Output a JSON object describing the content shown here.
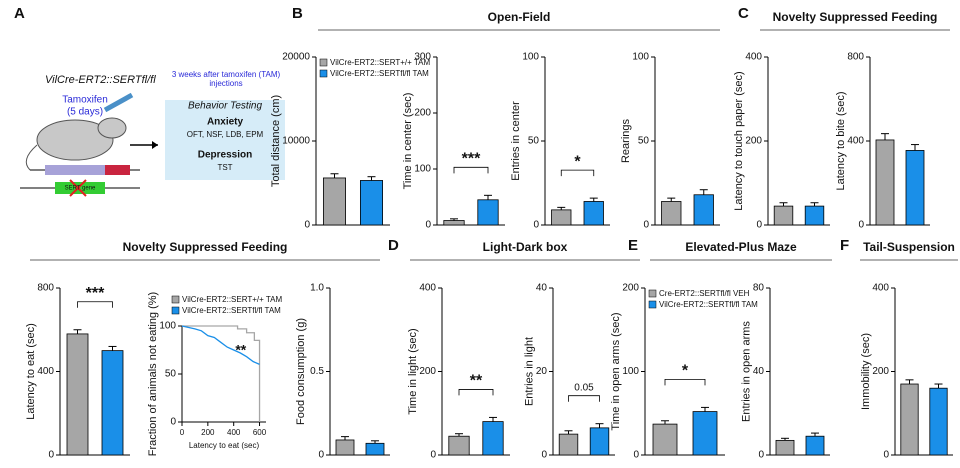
{
  "panel_labels": [
    "A",
    "B",
    "C",
    "D",
    "E",
    "F"
  ],
  "section_titles": [
    "Open-Field",
    "Novelty Suppressed Feeding",
    "Novelty Suppressed Feeding",
    "Light-Dark box",
    "Elevated-Plus Maze",
    "Tail-Suspension"
  ],
  "diagram": {
    "genotype": "VilCre-ERT2::SERTfl/fl",
    "treatment": "Tamoxifen",
    "treatment_duration": "(5 days)",
    "timing": "3 weeks after tamoxifen (TAM) injections",
    "box_title": "Behavior Testing",
    "anxiety": "Anxiety",
    "anxiety_tests": "OFT, NSF, LDB, EPM",
    "depression": "Depression",
    "depression_tests": "TST",
    "gene": "SERT gene"
  },
  "chart_data": [
    {
      "type": "bar",
      "ylabel": "Total distance (cm)",
      "ylim": [
        0,
        20000
      ],
      "yticks": [
        0,
        10000,
        20000
      ],
      "values": [
        5600,
        5300
      ],
      "errors": [
        500,
        450
      ],
      "colors": [
        "#a6a6a6",
        "#1a8fe8"
      ],
      "legend": [
        "VilCre-ERT2::SERT+/+ TAM",
        "VilCre-ERT2::SERTfl/fl TAM"
      ]
    },
    {
      "type": "bar",
      "ylabel": "Time in center (sec)",
      "ylim": [
        0,
        300
      ],
      "yticks": [
        0,
        100,
        200,
        300
      ],
      "values": [
        8,
        45
      ],
      "errors": [
        3,
        8
      ],
      "colors": [
        "#a6a6a6",
        "#1a8fe8"
      ],
      "annotation": "***"
    },
    {
      "type": "bar",
      "ylabel": "Entries in center",
      "ylim": [
        0,
        100
      ],
      "yticks": [
        0,
        50,
        100
      ],
      "values": [
        9,
        14
      ],
      "errors": [
        1.5,
        2
      ],
      "colors": [
        "#a6a6a6",
        "#1a8fe8"
      ],
      "annotation": "*"
    },
    {
      "type": "bar",
      "ylabel": "Rearings",
      "ylim": [
        0,
        100
      ],
      "yticks": [
        0,
        50,
        100
      ],
      "values": [
        14,
        18
      ],
      "errors": [
        2,
        3
      ],
      "colors": [
        "#a6a6a6",
        "#1a8fe8"
      ]
    },
    {
      "type": "bar",
      "ylabel": "Latency to touch paper (sec)",
      "ylim": [
        0,
        400
      ],
      "yticks": [
        0,
        200,
        400
      ],
      "values": [
        45,
        45
      ],
      "errors": [
        8,
        8
      ],
      "colors": [
        "#a6a6a6",
        "#1a8fe8"
      ]
    },
    {
      "type": "bar",
      "ylabel": "Latency to bite (sec)",
      "ylim": [
        0,
        800
      ],
      "yticks": [
        0,
        400,
        800
      ],
      "values": [
        405,
        355
      ],
      "errors": [
        30,
        28
      ],
      "colors": [
        "#a6a6a6",
        "#1a8fe8"
      ]
    },
    {
      "type": "bar",
      "ylabel": "Latency to eat (sec)",
      "ylim": [
        0,
        800
      ],
      "yticks": [
        0,
        400,
        800
      ],
      "values": [
        580,
        500
      ],
      "errors": [
        20,
        20
      ],
      "colors": [
        "#a6a6a6",
        "#1a8fe8"
      ],
      "annotation": "***"
    },
    {
      "type": "line",
      "ylabel": "Fraction of animals not eating (%)",
      "xlabel": "Latency to eat (sec)",
      "xlim": [
        0,
        650
      ],
      "xticks": [
        0,
        200,
        400,
        600
      ],
      "ylim": [
        0,
        100
      ],
      "yticks": [
        0,
        50,
        100
      ],
      "annotation": "**",
      "series": [
        {
          "name": "VilCre-ERT2::SERT+/+ TAM",
          "color": "#a6a6a6",
          "x": [
            0,
            430,
            430,
            500,
            500,
            560,
            560,
            600,
            600
          ],
          "values": [
            100,
            100,
            97,
            97,
            93,
            93,
            85,
            85,
            0
          ]
        },
        {
          "name": "VilCre-ERT2::SERTfl/fl TAM",
          "color": "#1a8fe8",
          "x": [
            0,
            100,
            150,
            200,
            250,
            300,
            350,
            400,
            450,
            500,
            550,
            600
          ],
          "values": [
            100,
            97,
            95,
            90,
            88,
            83,
            78,
            75,
            72,
            68,
            63,
            60
          ]
        }
      ]
    },
    {
      "type": "bar",
      "ylabel": "Food consumption (g)",
      "ylim": [
        0,
        1
      ],
      "yticks": [
        0,
        0.5,
        {
          "value": 1,
          "label": "1.0"
        }
      ],
      "values": [
        0.09,
        0.07
      ],
      "errors": [
        0.02,
        0.015
      ],
      "colors": [
        "#a6a6a6",
        "#1a8fe8"
      ]
    },
    {
      "type": "bar",
      "ylabel": "Time in light (sec)",
      "ylim": [
        0,
        400
      ],
      "yticks": [
        0,
        200,
        400
      ],
      "values": [
        45,
        80
      ],
      "errors": [
        6,
        10
      ],
      "colors": [
        "#a6a6a6",
        "#1a8fe8"
      ],
      "annotation": "**"
    },
    {
      "type": "bar",
      "ylabel": "Entries in light",
      "ylim": [
        0,
        40
      ],
      "yticks": [
        0,
        20,
        40
      ],
      "values": [
        5,
        6.5
      ],
      "errors": [
        0.8,
        1
      ],
      "colors": [
        "#a6a6a6",
        "#1a8fe8"
      ],
      "annotation": "0.05"
    },
    {
      "type": "bar",
      "ylabel": "Time in open arms (sec)",
      "ylim": [
        0,
        200
      ],
      "yticks": [
        0,
        100,
        200
      ],
      "values": [
        37,
        52
      ],
      "errors": [
        4,
        5
      ],
      "colors": [
        "#a6a6a6",
        "#1a8fe8"
      ],
      "annotation": "*",
      "legend": [
        "Cre-ERT2::SERTfl/fl VEH",
        "VilCre-ERT2::SERTfl/fl TAM"
      ]
    },
    {
      "type": "bar",
      "ylabel": "Entries in open arms",
      "ylim": [
        0,
        80
      ],
      "yticks": [
        0,
        40,
        80
      ],
      "values": [
        7,
        9
      ],
      "errors": [
        1,
        1.5
      ],
      "colors": [
        "#a6a6a6",
        "#1a8fe8"
      ]
    },
    {
      "type": "bar",
      "ylabel": "Immobility (sec)",
      "ylim": [
        0,
        400
      ],
      "yticks": [
        0,
        200,
        400
      ],
      "values": [
        170,
        160
      ],
      "errors": [
        10,
        10
      ],
      "colors": [
        "#a6a6a6",
        "#1a8fe8"
      ]
    }
  ]
}
